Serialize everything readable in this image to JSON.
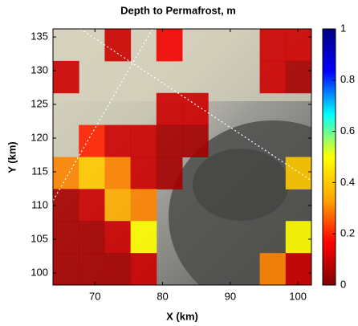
{
  "chart_data": {
    "type": "heatmap",
    "title": "Depth to Permafrost, m",
    "x_label": "X (km)",
    "y_label": "Y (km)",
    "xlim": [
      63.8,
      102
    ],
    "xticks": [
      70,
      80,
      90,
      100
    ],
    "ylim": [
      98.2,
      136.2
    ],
    "yticks": [
      100,
      105,
      110,
      115,
      120,
      125,
      130,
      135
    ],
    "z": [
      [
        null,
        null,
        0.1,
        null,
        0.15,
        null,
        null,
        null,
        0.1,
        0.1
      ],
      [
        0.1,
        null,
        null,
        null,
        null,
        null,
        null,
        null,
        0.1,
        0.05
      ],
      [
        null,
        null,
        null,
        null,
        0.1,
        0.1,
        null,
        null,
        null,
        null
      ],
      [
        null,
        0.2,
        0.1,
        0.1,
        0.05,
        0.05,
        null,
        null,
        null,
        null
      ],
      [
        0.3,
        0.4,
        0.3,
        0.1,
        0.05,
        null,
        null,
        null,
        null,
        0.4
      ],
      [
        0.05,
        0.1,
        0.35,
        0.3,
        null,
        null,
        null,
        null,
        null,
        null
      ],
      [
        0.05,
        0.05,
        0.1,
        0.5,
        null,
        null,
        null,
        null,
        null,
        0.5
      ],
      [
        0.05,
        0.05,
        0.05,
        0.1,
        null,
        null,
        null,
        null,
        0.3,
        0.1
      ]
    ],
    "clim": [
      0,
      1
    ],
    "cticks": [
      0,
      0.2,
      0.4,
      0.6,
      0.8,
      1
    ],
    "colormap": [
      "#7f0000",
      "#ff0000",
      "#ffa500",
      "#ffff00",
      "#00ffff",
      "#0000ff",
      "#00007f"
    ]
  }
}
